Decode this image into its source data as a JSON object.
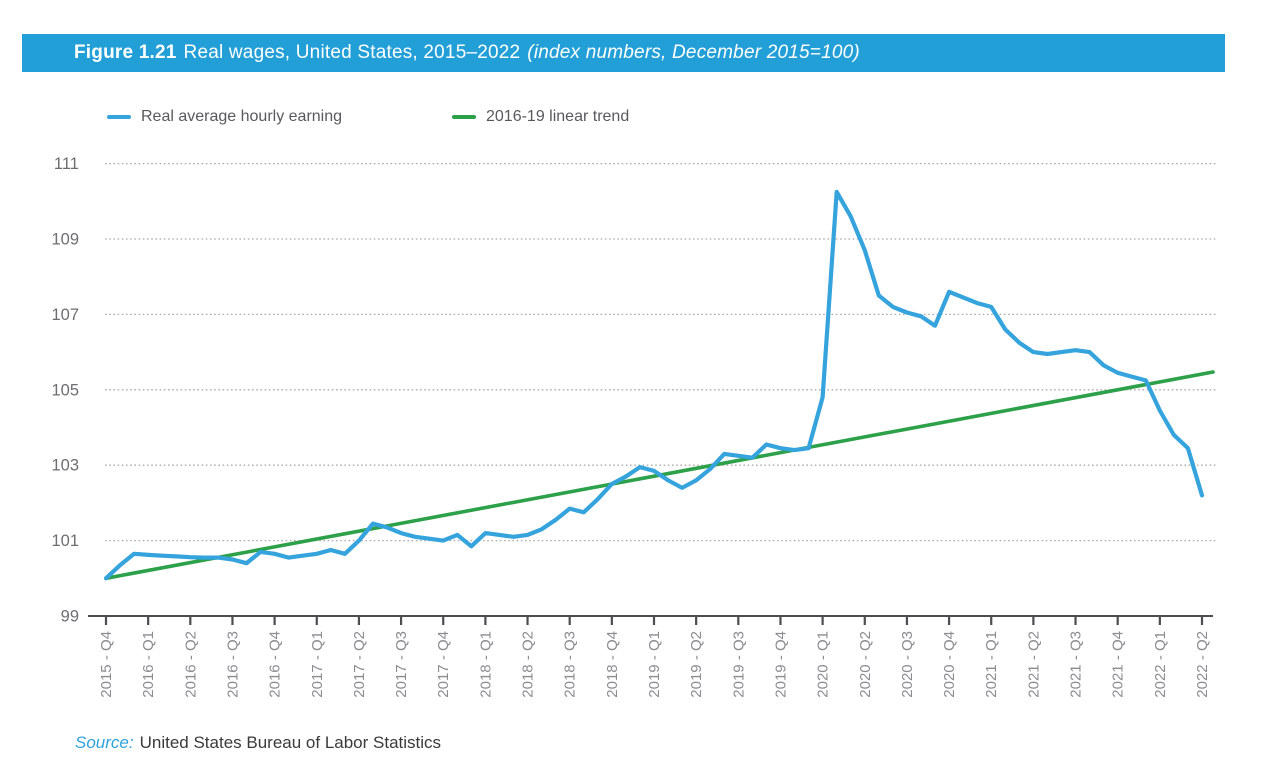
{
  "header": {
    "figure_label": "Figure 1.21",
    "title": "Real wages, United States, 2015–2022",
    "subtitle": "(index numbers, December 2015=100)",
    "bar_color": "#239fd8"
  },
  "legend": [
    {
      "label": "Real average hourly earning",
      "color": "#35a3dc"
    },
    {
      "label": "2016-19 linear trend",
      "color": "#2da04a"
    }
  ],
  "source": {
    "prefix": "Source:",
    "text": "United States Bureau of Labor Statistics",
    "prefix_color": "#2da2dc"
  },
  "chart_data": {
    "type": "line",
    "title": "Real wages, United States, 2015–2022 (index numbers, December 2015=100)",
    "xlabel": "",
    "ylabel": "",
    "ylim": [
      99,
      111.8
    ],
    "y_ticks": [
      99,
      101,
      103,
      105,
      107,
      109,
      111
    ],
    "grid": "horizontal-dotted",
    "legend_position": "top",
    "x_tick_labels": [
      "2015 - Q4",
      "2016 - Q1",
      "2016 - Q2",
      "2016 - Q3",
      "2016 - Q4",
      "2017 - Q1",
      "2017 - Q2",
      "2017 - Q3",
      "2017 - Q4",
      "2018 - Q1",
      "2018 - Q2",
      "2018 - Q3",
      "2018 - Q4",
      "2019 - Q1",
      "2019 - Q2",
      "2019 - Q3",
      "2019 - Q4",
      "2020 - Q1",
      "2020 - Q2",
      "2020 - Q3",
      "2020 - Q4",
      "2021 - Q1",
      "2021 - Q2",
      "2021 - Q3",
      "2021 - Q4",
      "2022 - Q1",
      "2022 - Q2"
    ],
    "series": [
      {
        "name": "Real average hourly earning",
        "color": "#35a3dc",
        "frequency": "monthly",
        "start_month": "2015-12",
        "end_month": "2022-06",
        "values": [
          100.0,
          100.35,
          100.65,
          100.62,
          100.6,
          100.58,
          100.56,
          100.55,
          100.55,
          100.5,
          100.4,
          100.7,
          100.65,
          100.55,
          100.6,
          100.65,
          100.75,
          100.65,
          101.0,
          101.45,
          101.35,
          101.2,
          101.1,
          101.05,
          101.0,
          101.15,
          100.85,
          101.2,
          101.15,
          101.1,
          101.15,
          101.3,
          101.55,
          101.85,
          101.75,
          102.1,
          102.5,
          102.7,
          102.95,
          102.85,
          102.6,
          102.4,
          102.6,
          102.9,
          103.3,
          103.25,
          103.2,
          103.55,
          103.45,
          103.4,
          103.45,
          104.8,
          110.25,
          109.6,
          108.7,
          107.5,
          107.2,
          107.05,
          106.95,
          106.7,
          107.6,
          107.45,
          107.3,
          107.2,
          106.6,
          106.25,
          106.0,
          105.95,
          106.0,
          106.05,
          106.0,
          105.65,
          105.45,
          105.35,
          105.25,
          104.45,
          103.8,
          103.45,
          102.2
        ]
      },
      {
        "name": "2016-19 linear trend",
        "color": "#2da04a",
        "trend": true,
        "start_value": 100.0,
        "end_value": 105.45
      }
    ]
  },
  "axis_style": {
    "axis_color": "#4d4d4f",
    "grid_color": "#ababab",
    "y_label_color": "#6d6e70",
    "x_label_color": "#8a8c8e"
  }
}
